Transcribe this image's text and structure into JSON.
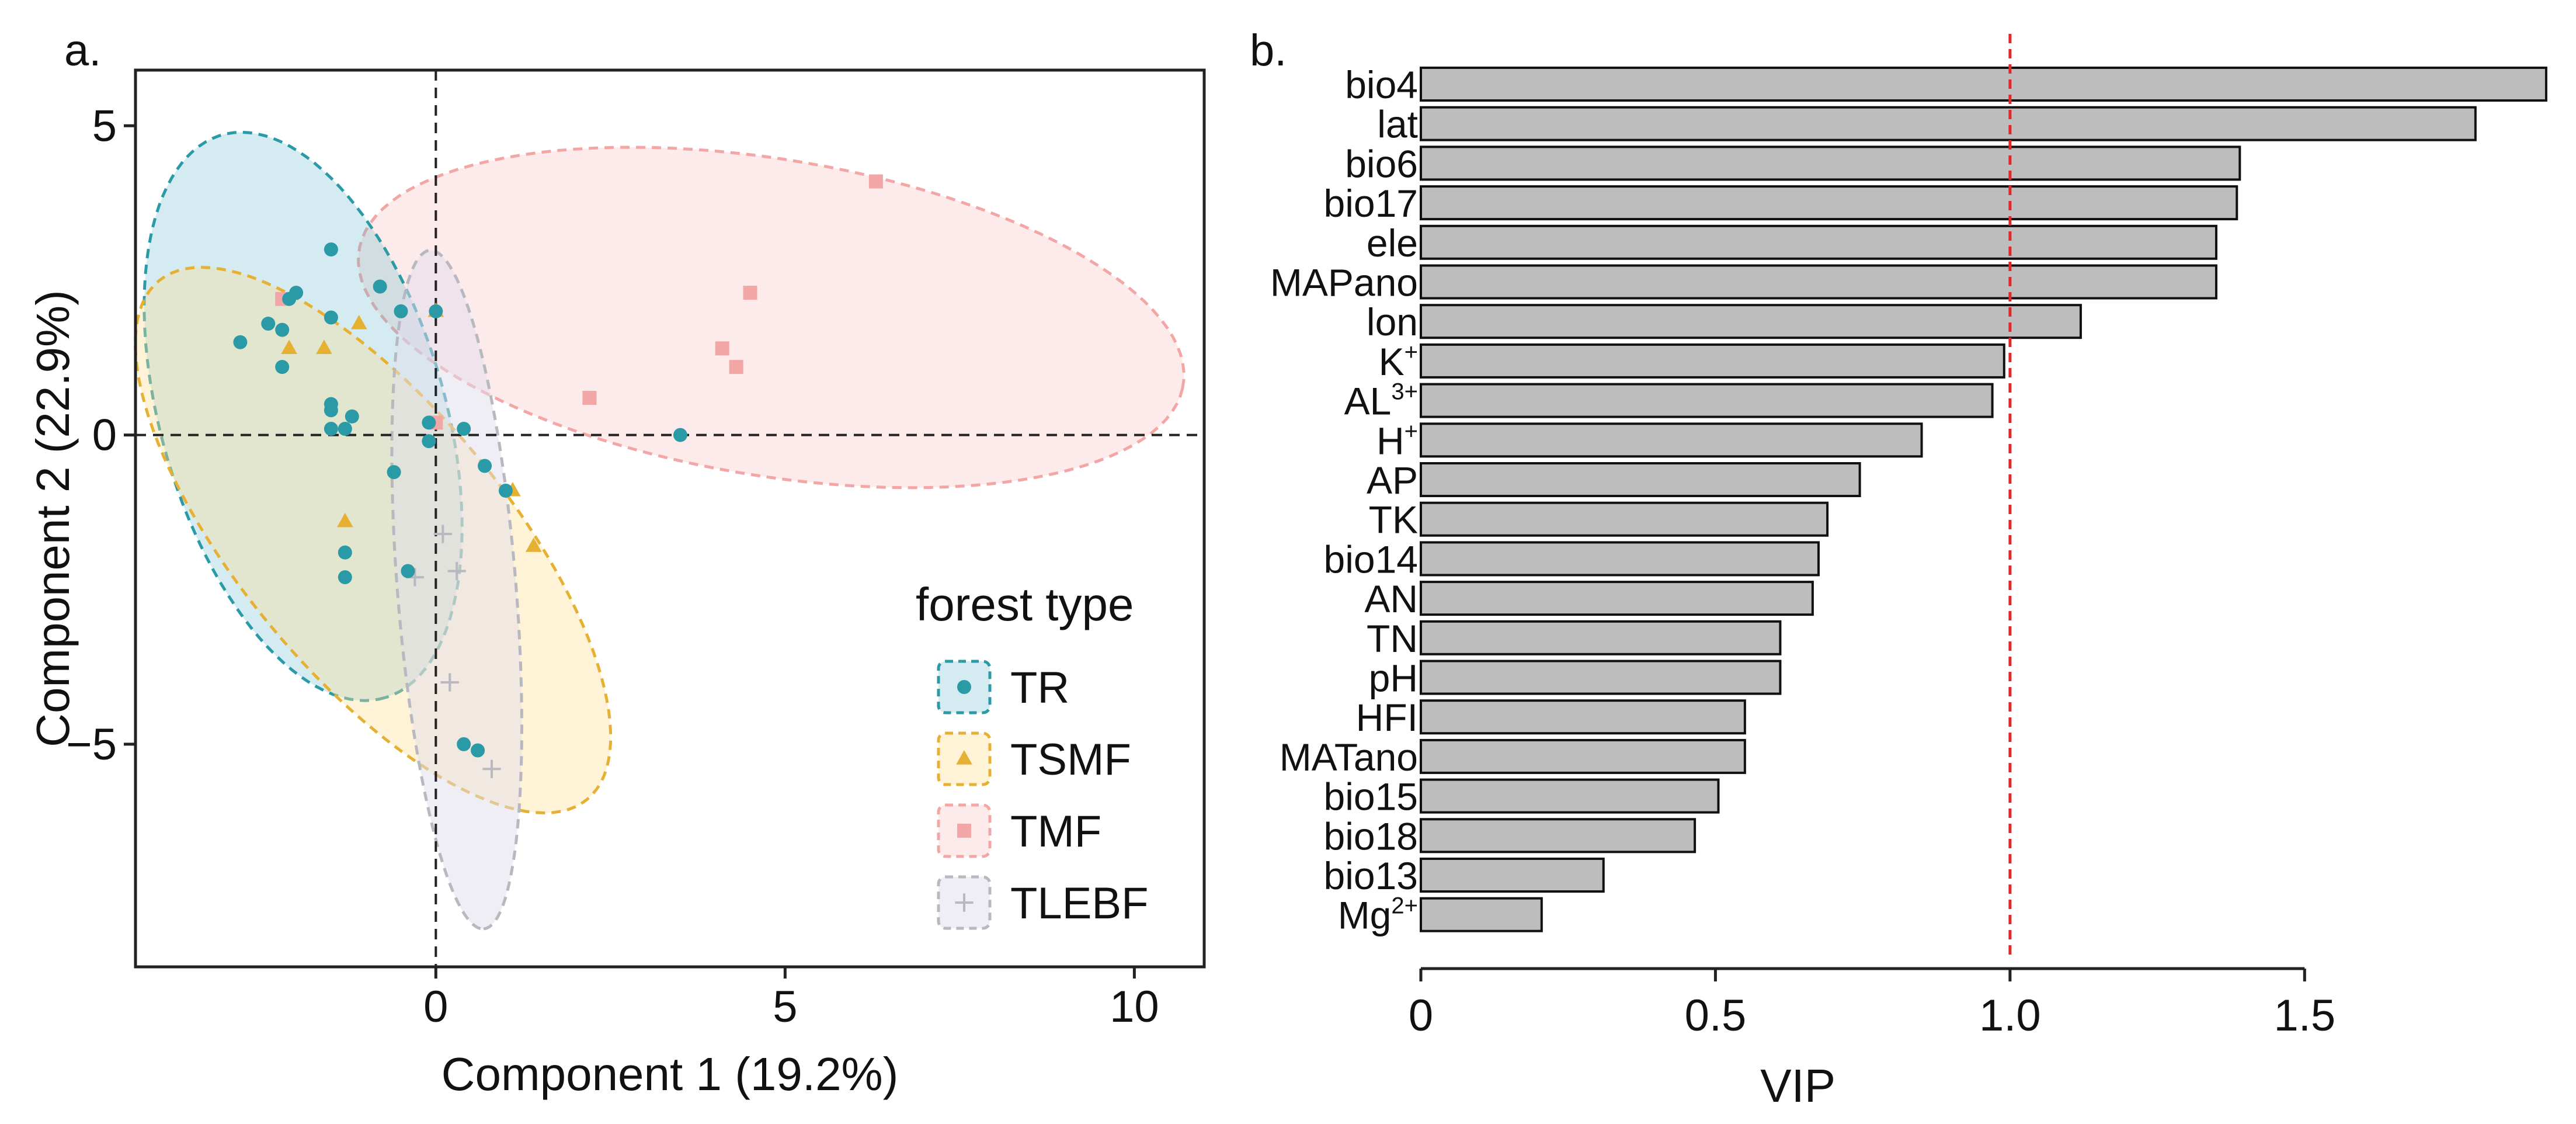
{
  "panels": {
    "a": "a.",
    "b": "b."
  },
  "chart_data": [
    {
      "type": "scatter",
      "panel": "a.",
      "xlabel": "Component 1 (19.2%)",
      "ylabel": "Component 2 (22.9%)",
      "xlim": [
        -4.3,
        11.0
      ],
      "ylim": [
        -8.6,
        5.9
      ],
      "xticks": [
        {
          "v": 0,
          "label": "0"
        },
        {
          "v": 5,
          "label": "5"
        },
        {
          "v": 10,
          "label": "10"
        }
      ],
      "yticks": [
        {
          "v": 5,
          "label": "5"
        },
        {
          "v": 0,
          "label": "0"
        },
        {
          "v": -5,
          "label": "−5"
        }
      ],
      "reference_lines": {
        "x": 0,
        "y": 0
      },
      "legend": {
        "title": "forest type",
        "placement": "right"
      },
      "series": [
        {
          "name": "TR",
          "marker": "circle",
          "color": "#2a9aa6",
          "fill": "rgba(100,186,204,0.28)",
          "ellipse": {
            "cx": -1.9,
            "cy": 0.3,
            "rx": 4.7,
            "ry": 2.05,
            "angle_deg": -76.5
          },
          "points": [
            [
              -2.0,
              2.3
            ],
            [
              -2.1,
              2.2
            ],
            [
              -1.5,
              3.0
            ],
            [
              -2.4,
              1.8
            ],
            [
              -2.8,
              1.5
            ],
            [
              -2.2,
              1.7
            ],
            [
              -2.2,
              1.1
            ],
            [
              -1.5,
              1.9
            ],
            [
              -0.8,
              2.4
            ],
            [
              -0.5,
              2.0
            ],
            [
              0.0,
              2.0
            ],
            [
              -1.5,
              0.5
            ],
            [
              -1.5,
              0.4
            ],
            [
              -1.3,
              0.1
            ],
            [
              -1.5,
              0.1
            ],
            [
              -1.2,
              0.3
            ],
            [
              -0.6,
              -0.6
            ],
            [
              -0.1,
              0.2
            ],
            [
              -0.1,
              -0.1
            ],
            [
              0.4,
              0.1
            ],
            [
              0.7,
              -0.5
            ],
            [
              1.0,
              -0.9
            ],
            [
              3.5,
              0.0
            ],
            [
              -1.3,
              -1.9
            ],
            [
              -1.3,
              -2.3
            ],
            [
              -0.4,
              -2.2
            ],
            [
              0.4,
              -5.0
            ],
            [
              0.6,
              -5.1
            ]
          ]
        },
        {
          "name": "TSMF",
          "marker": "triangle",
          "color": "#e6b032",
          "fill": "rgba(252,222,150,0.38)",
          "ellipse": {
            "cx": -0.9,
            "cy": -1.7,
            "rx": 5.2,
            "ry": 2.0,
            "angle_deg": -55
          },
          "points": [
            [
              -1.1,
              1.8
            ],
            [
              -1.6,
              1.4
            ],
            [
              -2.1,
              1.4
            ],
            [
              -1.3,
              -1.4
            ],
            [
              0.0,
              2.0
            ],
            [
              1.1,
              -0.9
            ],
            [
              1.4,
              -1.8
            ]
          ]
        },
        {
          "name": "TMF",
          "marker": "square",
          "color": "#f2a6a6",
          "fill": "rgba(252,214,214,0.5)",
          "ellipse": {
            "cx": 4.8,
            "cy": 1.9,
            "rx": 6.0,
            "ry": 2.55,
            "angle_deg": -11
          },
          "points": [
            [
              -2.2,
              2.2
            ],
            [
              6.3,
              4.1
            ],
            [
              4.5,
              2.3
            ],
            [
              4.1,
              1.4
            ],
            [
              4.3,
              1.1
            ],
            [
              2.2,
              0.6
            ],
            [
              0.0,
              0.2
            ]
          ]
        },
        {
          "name": "TLEBF",
          "marker": "plus",
          "color": "#b8b8c0",
          "fill": "rgba(226,222,236,0.5)",
          "ellipse": {
            "cx": 0.3,
            "cy": -2.5,
            "rx": 5.5,
            "ry": 0.85,
            "angle_deg": -86
          },
          "points": [
            [
              0.1,
              -1.6
            ],
            [
              0.3,
              -2.2
            ],
            [
              0.2,
              -4.0
            ],
            [
              0.8,
              -5.4
            ],
            [
              -0.3,
              -2.3
            ]
          ]
        }
      ]
    },
    {
      "type": "bar",
      "orientation": "horizontal",
      "panel": "b.",
      "xlabel": "VIP",
      "xlim": [
        0,
        1.92
      ],
      "xticks": [
        {
          "v": 0,
          "label": "0"
        },
        {
          "v": 0.5,
          "label": "0.5"
        },
        {
          "v": 1.0,
          "label": "1.0"
        },
        {
          "v": 1.5,
          "label": "1.5"
        }
      ],
      "threshold": {
        "value": 1.0,
        "color": "#e8262a"
      },
      "bar_color": "#bdbdbd",
      "categories": [
        {
          "label": "bio4",
          "sup": ""
        },
        {
          "label": "lat",
          "sup": ""
        },
        {
          "label": "bio6",
          "sup": ""
        },
        {
          "label": "bio17",
          "sup": ""
        },
        {
          "label": "ele",
          "sup": ""
        },
        {
          "label": "MAPano",
          "sup": ""
        },
        {
          "label": "lon",
          "sup": ""
        },
        {
          "label": "K",
          "sup": "+"
        },
        {
          "label": "AL",
          "sup": "3+"
        },
        {
          "label": "H",
          "sup": "+"
        },
        {
          "label": "AP",
          "sup": ""
        },
        {
          "label": "TK",
          "sup": ""
        },
        {
          "label": "bio14",
          "sup": ""
        },
        {
          "label": "AN",
          "sup": ""
        },
        {
          "label": "TN",
          "sup": ""
        },
        {
          "label": "pH",
          "sup": ""
        },
        {
          "label": "HFI",
          "sup": ""
        },
        {
          "label": "MATano",
          "sup": ""
        },
        {
          "label": "bio15",
          "sup": ""
        },
        {
          "label": "bio18",
          "sup": ""
        },
        {
          "label": "bio13",
          "sup": ""
        },
        {
          "label": "Mg",
          "sup": "2+"
        }
      ],
      "values": [
        1.91,
        1.79,
        1.39,
        1.385,
        1.35,
        1.35,
        1.12,
        0.99,
        0.97,
        0.85,
        0.745,
        0.69,
        0.675,
        0.665,
        0.61,
        0.61,
        0.55,
        0.55,
        0.505,
        0.465,
        0.31,
        0.205
      ]
    }
  ]
}
